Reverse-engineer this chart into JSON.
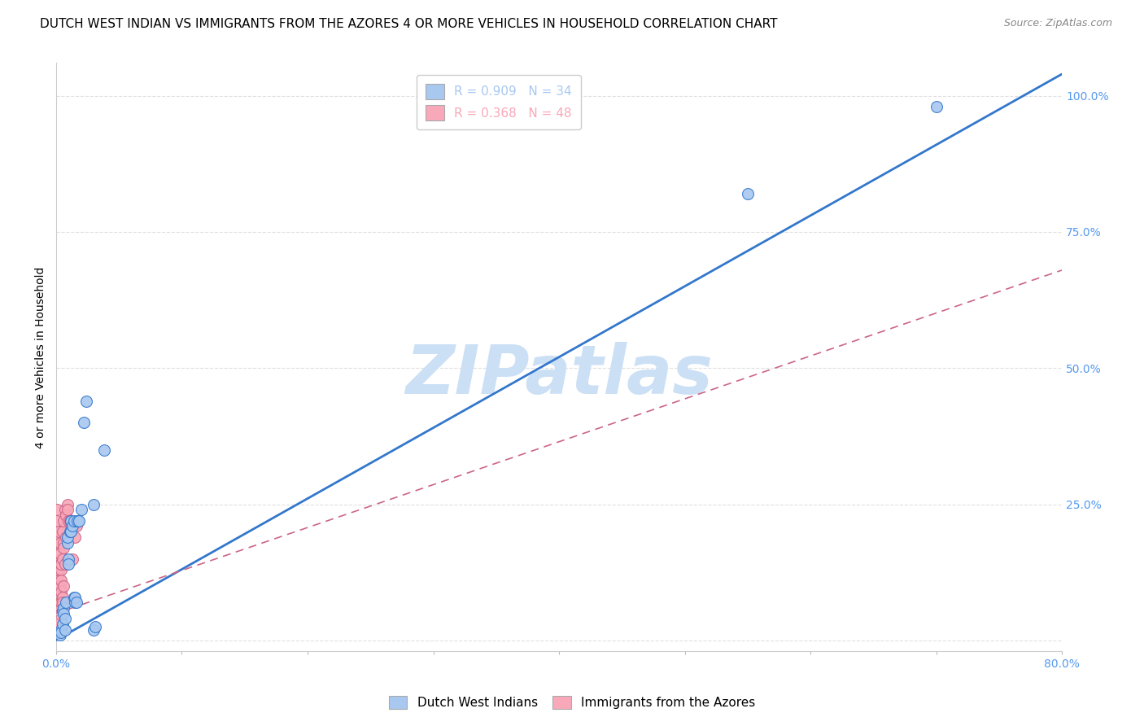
{
  "title": "DUTCH WEST INDIAN VS IMMIGRANTS FROM THE AZORES 4 OR MORE VEHICLES IN HOUSEHOLD CORRELATION CHART",
  "source": "Source: ZipAtlas.com",
  "ylabel": "4 or more Vehicles in Household",
  "ytick_labels": [
    "",
    "25.0%",
    "50.0%",
    "75.0%",
    "100.0%"
  ],
  "ytick_values": [
    0.0,
    0.25,
    0.5,
    0.75,
    1.0
  ],
  "xlim": [
    0.0,
    0.8
  ],
  "ylim": [
    -0.02,
    1.06
  ],
  "legend_entries": [
    {
      "label": "R = 0.909   N = 34",
      "color": "#a8c8f0"
    },
    {
      "label": "R = 0.368   N = 48",
      "color": "#f8a8b8"
    }
  ],
  "watermark": "ZIPatlas",
  "watermark_color": "#cce0f5",
  "blue_color": "#a8c8f0",
  "pink_color": "#f8a8b8",
  "blue_line_color": "#3377cc",
  "pink_line_color": "#cc6688",
  "blue_points": [
    [
      0.003,
      0.01
    ],
    [
      0.004,
      0.02
    ],
    [
      0.004,
      0.015
    ],
    [
      0.005,
      0.055
    ],
    [
      0.005,
      0.03
    ],
    [
      0.006,
      0.06
    ],
    [
      0.006,
      0.05
    ],
    [
      0.007,
      0.04
    ],
    [
      0.007,
      0.02
    ],
    [
      0.008,
      0.07
    ],
    [
      0.009,
      0.18
    ],
    [
      0.009,
      0.19
    ],
    [
      0.01,
      0.15
    ],
    [
      0.01,
      0.14
    ],
    [
      0.011,
      0.2
    ],
    [
      0.012,
      0.22
    ],
    [
      0.012,
      0.2
    ],
    [
      0.013,
      0.21
    ],
    [
      0.014,
      0.22
    ],
    [
      0.014,
      0.08
    ],
    [
      0.015,
      0.07
    ],
    [
      0.015,
      0.08
    ],
    [
      0.016,
      0.07
    ],
    [
      0.017,
      0.22
    ],
    [
      0.018,
      0.22
    ],
    [
      0.02,
      0.24
    ],
    [
      0.022,
      0.4
    ],
    [
      0.024,
      0.44
    ],
    [
      0.03,
      0.25
    ],
    [
      0.03,
      0.02
    ],
    [
      0.031,
      0.025
    ],
    [
      0.038,
      0.35
    ],
    [
      0.55,
      0.82
    ],
    [
      0.7,
      0.98
    ]
  ],
  "pink_points": [
    [
      0.001,
      0.24
    ],
    [
      0.001,
      0.22
    ],
    [
      0.001,
      0.19
    ],
    [
      0.001,
      0.17
    ],
    [
      0.002,
      0.15
    ],
    [
      0.002,
      0.13
    ],
    [
      0.002,
      0.11
    ],
    [
      0.002,
      0.09
    ],
    [
      0.002,
      0.2
    ],
    [
      0.002,
      0.16
    ],
    [
      0.002,
      0.13
    ],
    [
      0.003,
      0.1
    ],
    [
      0.003,
      0.18
    ],
    [
      0.003,
      0.14
    ],
    [
      0.003,
      0.1
    ],
    [
      0.003,
      0.07
    ],
    [
      0.003,
      0.16
    ],
    [
      0.004,
      0.13
    ],
    [
      0.004,
      0.09
    ],
    [
      0.004,
      0.06
    ],
    [
      0.004,
      0.14
    ],
    [
      0.004,
      0.11
    ],
    [
      0.004,
      0.07
    ],
    [
      0.004,
      0.04
    ],
    [
      0.005,
      0.2
    ],
    [
      0.005,
      0.08
    ],
    [
      0.005,
      0.15
    ],
    [
      0.005,
      0.07
    ],
    [
      0.006,
      0.18
    ],
    [
      0.006,
      0.1
    ],
    [
      0.006,
      0.22
    ],
    [
      0.006,
      0.17
    ],
    [
      0.007,
      0.24
    ],
    [
      0.007,
      0.14
    ],
    [
      0.008,
      0.19
    ],
    [
      0.008,
      0.23
    ],
    [
      0.009,
      0.25
    ],
    [
      0.009,
      0.24
    ],
    [
      0.01,
      0.22
    ],
    [
      0.011,
      0.22
    ],
    [
      0.012,
      0.22
    ],
    [
      0.013,
      0.15
    ],
    [
      0.014,
      0.21
    ],
    [
      0.015,
      0.19
    ],
    [
      0.016,
      0.21
    ],
    [
      0.001,
      0.02
    ],
    [
      0.001,
      0.03
    ],
    [
      0.002,
      0.015
    ]
  ],
  "blue_line_x": [
    -0.01,
    0.8
  ],
  "blue_line_y": [
    -0.012,
    1.04
  ],
  "pink_line_x": [
    0.0,
    0.8
  ],
  "pink_line_y": [
    0.05,
    0.68
  ],
  "grid_color": "#e0e0e0",
  "background_color": "#ffffff",
  "title_fontsize": 11,
  "axis_label_fontsize": 10,
  "tick_fontsize": 10,
  "legend_fontsize": 11,
  "watermark_fontsize": 60,
  "right_ytick_color": "#5599ee"
}
